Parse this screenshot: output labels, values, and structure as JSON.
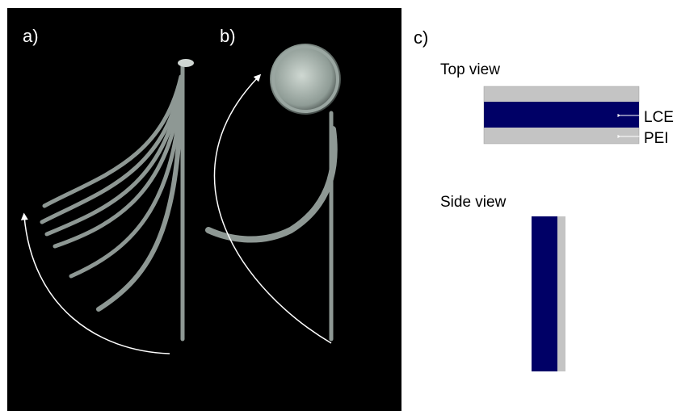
{
  "panels": [
    {
      "label": "a)"
    },
    {
      "label": "b)"
    },
    {
      "label": "c)",
      "top_view": {
        "title": "Top view",
        "layers": [
          "LCE",
          "PEI"
        ]
      },
      "side_view": {
        "title": "Side view"
      }
    }
  ]
}
